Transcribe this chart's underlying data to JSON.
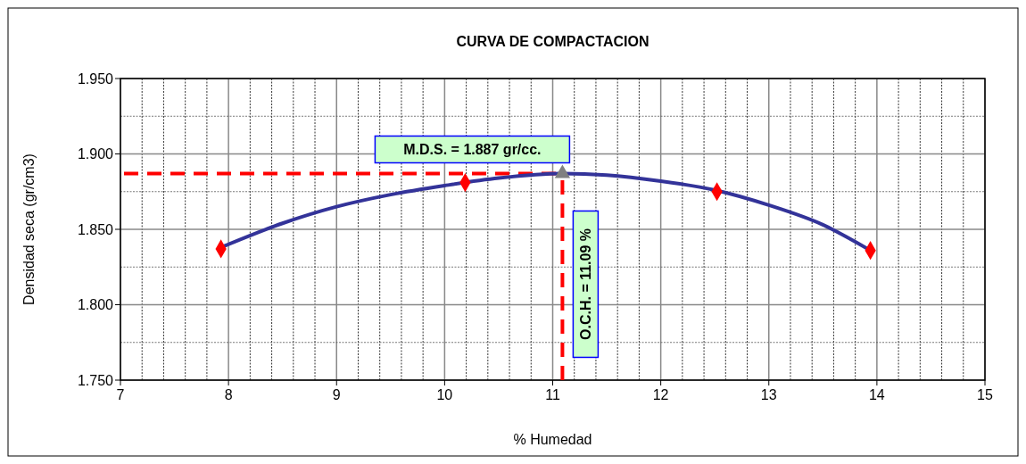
{
  "chart_data": {
    "type": "scatter",
    "title": "CURVA DE COMPACTACION",
    "xlabel": "% Humedad",
    "ylabel": "Densidad seca (gr/cm3)",
    "xlim": [
      7,
      15
    ],
    "xticks": [
      7,
      {
        "value": 7.2,
        "label": null
      },
      {
        "value": 7.4,
        "label": null
      },
      {
        "value": 7.6,
        "label": null
      },
      {
        "value": 7.8,
        "label": null
      },
      8,
      {
        "value": 8.2,
        "label": null
      },
      {
        "value": 8.4,
        "label": null
      },
      {
        "value": 8.6,
        "label": null
      },
      {
        "value": 8.8,
        "label": null
      },
      9,
      {
        "value": 9.2,
        "label": null
      },
      {
        "value": 9.4,
        "label": null
      },
      {
        "value": 9.6,
        "label": null
      },
      {
        "value": 9.8,
        "label": null
      },
      10,
      {
        "value": 10.2,
        "label": null
      },
      {
        "value": 10.4,
        "label": null
      },
      {
        "value": 10.6,
        "label": null
      },
      {
        "value": 10.8,
        "label": null
      },
      11,
      {
        "value": 11.2,
        "label": null
      },
      {
        "value": 11.4,
        "label": null
      },
      {
        "value": 11.6,
        "label": null
      },
      {
        "value": 11.8,
        "label": null
      },
      12,
      {
        "value": 12.2,
        "label": null
      },
      {
        "value": 12.4,
        "label": null
      },
      {
        "value": 12.6,
        "label": null
      },
      {
        "value": 12.8,
        "label": null
      },
      13,
      {
        "value": 13.2,
        "label": null
      },
      {
        "value": 13.4,
        "label": null
      },
      {
        "value": 13.6,
        "label": null
      },
      {
        "value": 13.8,
        "label": null
      },
      14,
      {
        "value": 14.2,
        "label": null
      },
      {
        "value": 14.4,
        "label": null
      },
      {
        "value": 14.6,
        "label": null
      },
      {
        "value": 14.8,
        "label": null
      },
      15
    ],
    "ylim": [
      1.75,
      1.95
    ],
    "yticks": [
      {
        "value": 1.75,
        "label": "1.750"
      },
      {
        "value": 1.775,
        "label": null
      },
      {
        "value": 1.8,
        "label": "1.800"
      },
      {
        "value": 1.825,
        "label": null
      },
      {
        "value": 1.85,
        "label": "1.850"
      },
      {
        "value": 1.875,
        "label": null
      },
      {
        "value": 1.9,
        "label": "1.900"
      },
      {
        "value": 1.925,
        "label": null
      },
      {
        "value": 1.95,
        "label": "1.950"
      }
    ],
    "grid": true,
    "series": [
      {
        "type": "line",
        "color": "#333399",
        "marker": "none",
        "line_style": "solid",
        "x": [
          7.93,
          8.5,
          9,
          9.5,
          10,
          10.5,
          11.09,
          11.5,
          12,
          12.5,
          13,
          13.5,
          13.94
        ],
        "values": [
          1.838,
          1.854,
          1.865,
          1.873,
          1.879,
          1.884,
          1.887,
          1.886,
          1.882,
          1.876,
          1.866,
          1.853,
          1.836
        ]
      },
      {
        "color": "#ff0000",
        "marker": "diamond",
        "x": [
          7.93,
          10.19,
          12.52,
          13.94
        ],
        "values": [
          1.837,
          1.881,
          1.875,
          1.836
        ]
      },
      {
        "color": "#808080",
        "marker": "triangle",
        "x": [
          11.09
        ],
        "values": [
          1.887
        ]
      }
    ],
    "ref_lines": [
      {
        "axis": "y",
        "value": 1.887,
        "label": "M.D.S. = 1.887 gr/cc.",
        "color": "#ff0000",
        "line_style": "dashed"
      },
      {
        "axis": "x",
        "value": 11.09,
        "label": "O.C.H. = 11.09 %",
        "color": "#ff0000",
        "line_style": "dashed"
      }
    ]
  }
}
